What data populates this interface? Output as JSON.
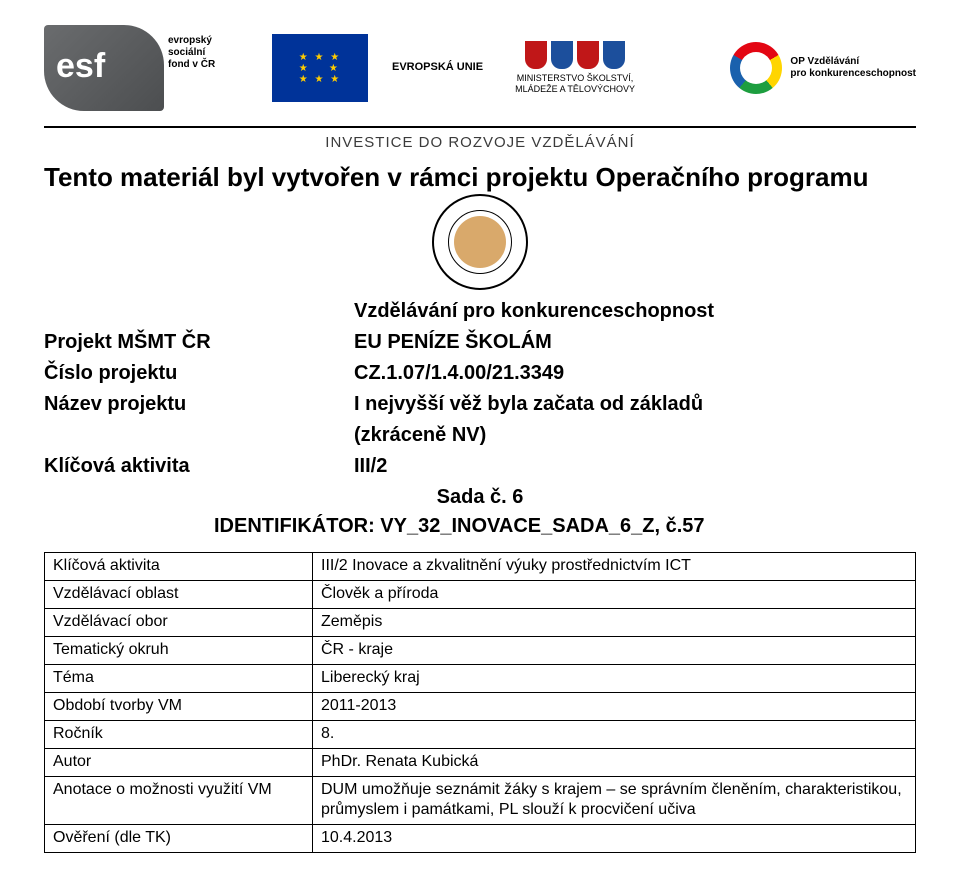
{
  "header": {
    "esf_text": "esf",
    "esf_sub": "evropský\nsociální\nfond v ČR",
    "eu_label": "EVROPSKÁ UNIE",
    "msmt_line1": "MINISTERSTVO ŠKOLSTVÍ,",
    "msmt_line2": "MLÁDEŽE A TĚLOVÝCHOVY",
    "opvk_line1": "OP Vzdělávání",
    "opvk_line2": "pro konkurenceschopnost",
    "crest_colors": [
      "#c01718",
      "#1c4f9c",
      "#c01718",
      "#1c4f9c"
    ],
    "invest_line": "INVESTICE DO ROZVOJE VZDĚLÁVÁNÍ"
  },
  "title": "Tento materiál byl vytvořen v rámci projektu Operačního programu",
  "meta": {
    "subtitle": "Vzdělávání pro konkurenceschopnost",
    "rows": [
      {
        "label": "Projekt MŠMT ČR",
        "value": "EU PENÍZE ŠKOLÁM"
      },
      {
        "label": "Číslo projektu",
        "value": "CZ.1.07/1.4.00/21.3349"
      },
      {
        "label": "Název projektu",
        "value": "I nejvyšší věž byla začata od základů"
      },
      {
        "label": "",
        "value": "(zkráceně NV)"
      },
      {
        "label": "Klíčová aktivita",
        "value": "III/2"
      }
    ],
    "sada_line": "Sada č. 6",
    "ident_line": "IDENTIFIKÁTOR: VY_32_INOVACE_SADA_6_Z,  č.57"
  },
  "table": {
    "rows": [
      {
        "label": "Klíčová aktivita",
        "value": "III/2 Inovace a zkvalitnění výuky prostřednictvím ICT"
      },
      {
        "label": "Vzdělávací oblast",
        "value": "Člověk a příroda"
      },
      {
        "label": "Vzdělávací obor",
        "value": "Zeměpis"
      },
      {
        "label": "Tematický okruh",
        "value": "ČR - kraje"
      },
      {
        "label": "Téma",
        "value": "Liberecký kraj"
      },
      {
        "label": "Období tvorby VM",
        "value": "2011-2013"
      },
      {
        "label": "Ročník",
        "value": "8."
      },
      {
        "label": "Autor",
        "value": "PhDr. Renata Kubická"
      },
      {
        "label": "Anotace o možnosti využití VM",
        "value": "DUM umožňuje seznámit žáky s krajem – se správním členěním, charakteristikou, průmyslem i památkami, PL slouží k procvičení  učiva"
      },
      {
        "label": "Ověření (dle TK)",
        "value": "10.4.2013"
      }
    ]
  },
  "colors": {
    "text": "#000000",
    "background": "#ffffff",
    "rule": "#000000",
    "eu_blue": "#003399",
    "eu_gold": "#ffcc00"
  }
}
